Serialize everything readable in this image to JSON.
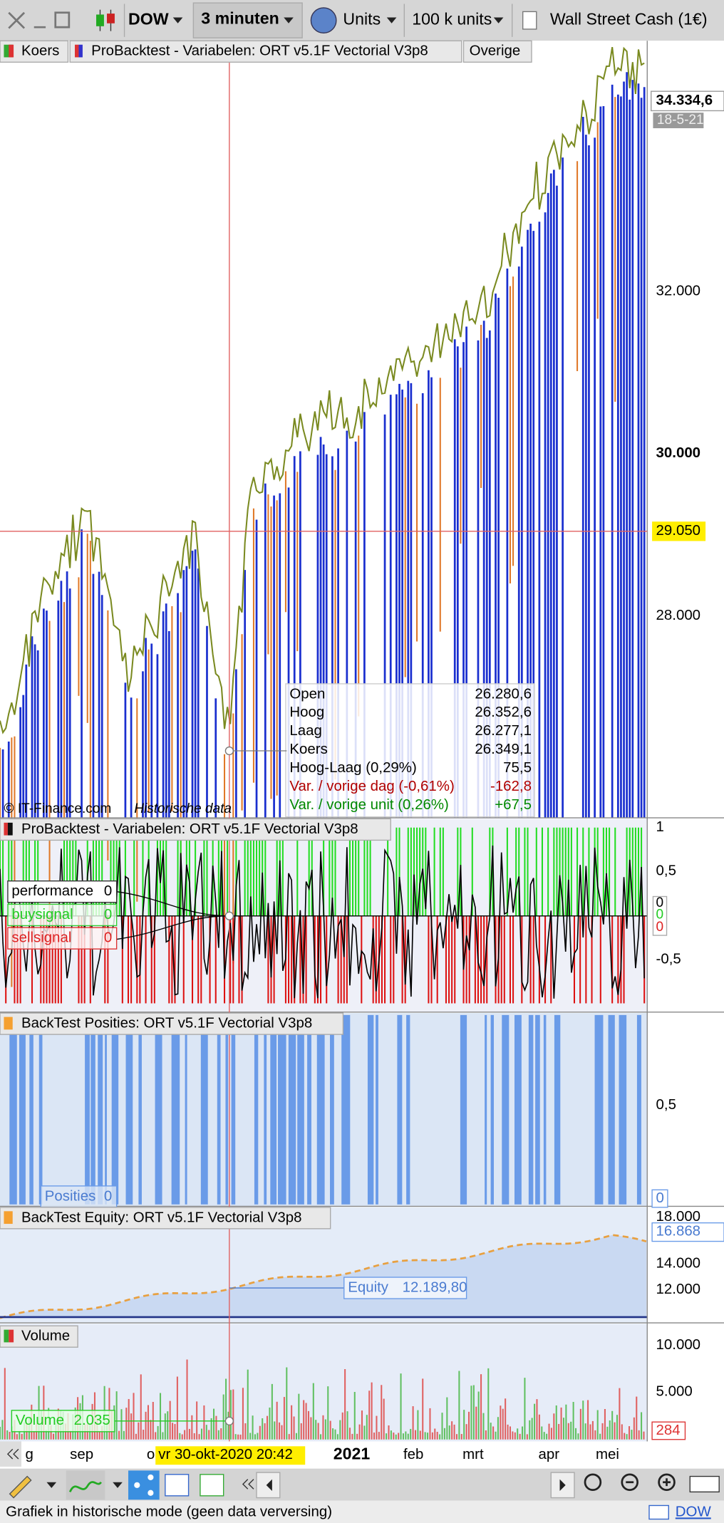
{
  "toolbar": {
    "instrument": "DOW",
    "timeframe": "3 minuten",
    "units_label": "Units",
    "units_size": "100 k units",
    "product": "Wall Street Cash (1€)"
  },
  "price_pane": {
    "tabs": [
      "Koers",
      "ProBacktest - Variabelen: ORT v5.1F Vectorial V3p8",
      "Overige"
    ],
    "axis_labels": [
      "34.334,6",
      "18-5-21",
      "32.000",
      "30.000",
      "29.050",
      "28.000"
    ],
    "tooltip": [
      {
        "label": "Open",
        "value": "26.280,6"
      },
      {
        "label": "Hoog",
        "value": "26.352,6"
      },
      {
        "label": "Laag",
        "value": "26.277,1"
      },
      {
        "label": "Koers",
        "value": "26.349,1"
      },
      {
        "label": "Hoog-Laag (0,29%)",
        "value": "75,5"
      },
      {
        "label": "Var. / vorige dag (-0,61%)",
        "value": "-162,8"
      },
      {
        "label": "Var. / vorige unit (0,26%)",
        "value": "+67,5"
      }
    ],
    "watermark": "© IT-Finance.com",
    "mode_note": "Historische data"
  },
  "indicator_pane": {
    "title": "ProBacktest - Variabelen: ORT v5.1F Vectorial V3p8",
    "legend": [
      {
        "name": "performance",
        "value": "0"
      },
      {
        "name": "buysignal",
        "value": "0"
      },
      {
        "name": "sellsignal",
        "value": "0"
      }
    ],
    "axis_labels": [
      "1",
      "0,5",
      "0",
      "-0,5"
    ],
    "last_values": [
      "0",
      "0",
      "0"
    ]
  },
  "positions_pane": {
    "title": "BackTest Posities: ORT v5.1F Vectorial V3p8",
    "legend": "Posities",
    "legend_value": "0",
    "axis_labels": [
      "0,5",
      "0"
    ]
  },
  "equity_pane": {
    "title": "BackTest Equity: ORT v5.1F Vectorial V3p8",
    "legend": "Equity",
    "legend_value": "12.189,80",
    "axis_labels": [
      "18.000",
      "16.868",
      "14.000",
      "12.000"
    ]
  },
  "volume_pane": {
    "title": "Volume",
    "legend": "Volume",
    "legend_value": "2.035",
    "axis_labels": [
      "10.000",
      "5.000",
      "284"
    ]
  },
  "date_axis": {
    "labels": [
      "g",
      "sep",
      "o",
      "2021",
      "feb",
      "mrt",
      "apr",
      "mei"
    ],
    "cursor": "vr 30-okt-2020 20:42"
  },
  "status_bar": {
    "message": "Grafiek in historische mode (geen data verversing)",
    "instrument": "DOW"
  }
}
